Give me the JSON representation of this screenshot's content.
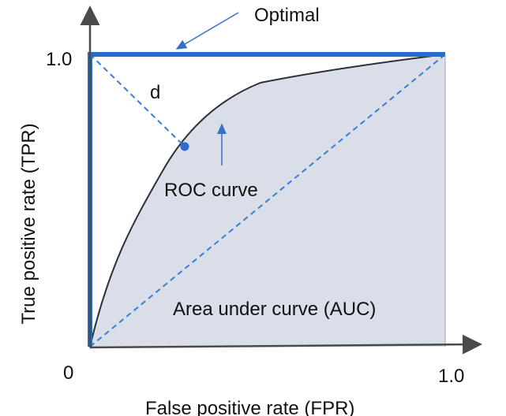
{
  "labels": {
    "optimal": "Optimal",
    "distance": "d",
    "roc_curve": "ROC curve",
    "auc": "Area under curve (AUC)",
    "y_axis_title": "True positive rate (TPR)",
    "x_axis_title": "False positive rate (FPR)",
    "origin": "0",
    "y_max_tick": "1.0",
    "x_max_tick": "1.0"
  },
  "colors": {
    "optimal_line": "#1f6fc5",
    "curve": "#2b2f3a",
    "auc_fill": "#d9dee8",
    "diagonal": "#3a7fd6",
    "axis": "#4a4a4a",
    "marker": "#2f6ad0"
  }
}
